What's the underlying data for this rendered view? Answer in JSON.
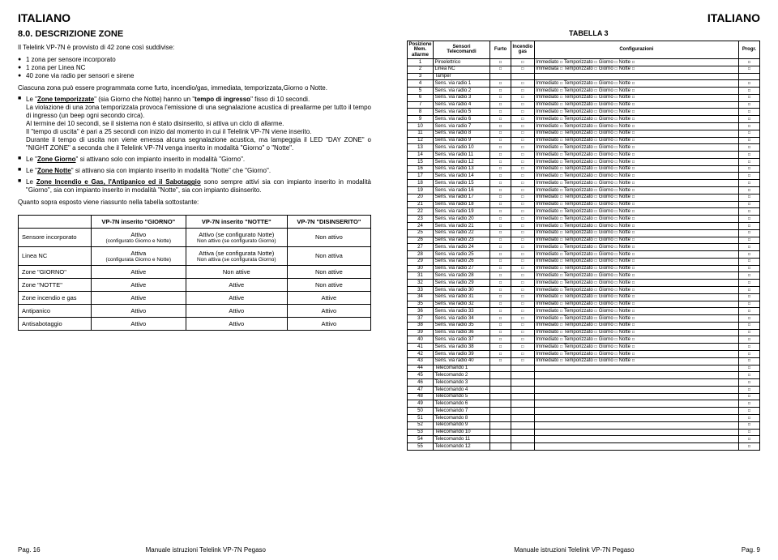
{
  "lang_label": "ITALIANO",
  "left": {
    "section_num": "8.0. DESCRIZIONE ZONE",
    "intro": "Il Telelink VP-7N è provvisto di 42 zone così suddivise:",
    "list1": [
      "1 zona per sensore incorporato",
      "1 zona per Linea NC",
      "40 zone via radio per sensori e sirene"
    ],
    "p1": "Ciascuna zona può essere programmata come furto, incendio/gas, immediata, temporizzata,Giorno o Notte.",
    "sq1_a": "Le \"",
    "sq1_u": "Zone temporizzate",
    "sq1_b": "\" (sia Giorno che Notte) hanno un \"",
    "sq1_c": "tempo di ingresso",
    "sq1_d": "\" fisso di 10 secondi.",
    "p2": "La violazione di una zona temporizzata provoca l'emissione di una segnalazione acustica di preallarme per tutto il tempo di ingresso (un beep ogni secondo circa).",
    "p3": "Al termine dei 10 secondi, se il sistema non è stato disinserito, si attiva un ciclo di allarme.",
    "p4a": "Il \"tempo di uscita\" è pari a 25 secondi con inizio dal momento in cui il Telelink VP-7N viene inserito.",
    "p4b": "Durante il tempo di uscita non viene emessa alcuna segnalazione acustica, ma lampeggia il LED \"DAY ZONE\" o \"NIGHT ZONE\" a seconda che il Telelink VP-7N venga inserito in modalità \"Giorno\" o \"Notte\".",
    "sq2_a": "Le \"",
    "sq2_u": "Zone Giorno",
    "sq2_b": "\" si attivano solo con impianto inserito in modalità \"Giorno\".",
    "sq3_a": "Le \"",
    "sq3_u": "Zone Notte",
    "sq3_b": "\" si attivano sia con impianto inserito in modalità \"Notte\" che \"Giorno\".",
    "sq4_a": "Le ",
    "sq4_u": "Zone Incendio e Gas, l'Antipanico ed il Sabotaggio",
    "sq4_b": " sono sempre attivi sia con impianto inserito in modalità \"Giorno\", sia con impianto inserito in modalità \"Notte\", sia con impianto disinserito.",
    "p5": "Quanto sopra esposto viene riassunto nella tabella sottostante:",
    "tbl1": {
      "h1": "VP-7N inserito \"GIORNO\"",
      "h2": "VP-7N inserito \"NOTTE\"",
      "h3": "VP-7N \"DISINSERITO\"",
      "rows": [
        {
          "h": "Sensore incorporato",
          "c1": "Attivo",
          "c1s": "(configurato Giorno e Notte)",
          "c2": "Attivo (se configurato Notte)",
          "c2s": "Non attivo (se configurato Giorno)",
          "c3": "Non attivo"
        },
        {
          "h": "Linea NC",
          "c1": "Attiva",
          "c1s": "(configurata Giorno e Notte)",
          "c2": "Attiva (se configurata Notte)",
          "c2s": "Non attiva (se configurata Giorno)",
          "c3": "Non attiva"
        },
        {
          "h": "Zone \"GIORNO\"",
          "c1": "Attive",
          "c2": "Non attive",
          "c3": "Non attive"
        },
        {
          "h": "Zone \"NOTTE\"",
          "c1": "Attive",
          "c2": "Attive",
          "c3": "Non attive"
        },
        {
          "h": "Zone incendio e gas",
          "c1": "Attive",
          "c2": "Attive",
          "c3": "Attive"
        },
        {
          "h": "Antipanico",
          "c1": "Attivo",
          "c2": "Attivo",
          "c3": "Attivo"
        },
        {
          "h": "Antisabotaggio",
          "c1": "Attivo",
          "c2": "Attivo",
          "c3": "Attivo"
        }
      ]
    },
    "footer_l": "Pag. 16",
    "footer_m": "Manuale istruzioni Telelink VP-7N Pegaso"
  },
  "right": {
    "tbl3_title": "TABELLA 3",
    "headers": {
      "pos1": "Posizione",
      "pos2": "Mem. allarme",
      "sens": "Sensori",
      "tele": "Telecomandi",
      "furto": "Furto",
      "inc1": "Incendio",
      "inc2": "gas",
      "conf": "Configurazioni",
      "prog": "Progr."
    },
    "cfg_parts": {
      "imm": "Immediato",
      "tmp": "Temporizzato",
      "gio": "Giorno",
      "not": "Notte"
    },
    "rows": [
      {
        "n": "1",
        "s": "Piroelettrico",
        "full": true,
        "imm": "Immediato"
      },
      {
        "n": "2",
        "s": "Linea NC",
        "full": true,
        "imm": "Immediata"
      },
      {
        "n": "3",
        "s": "Tamper",
        "full": false
      },
      {
        "n": "4",
        "s": "Sens. via radio 1",
        "full": true,
        "imm": "Immediato"
      },
      {
        "n": "5",
        "s": "Sens. via radio 2",
        "full": true,
        "imm": "Immediato"
      },
      {
        "n": "6",
        "s": "Sens. via radio 3",
        "full": true,
        "imm": "Immediato"
      },
      {
        "n": "7",
        "s": "Sens. via radio 4",
        "full": true,
        "imm": "Immediato"
      },
      {
        "n": "8",
        "s": "Sens. via radio 5",
        "full": true,
        "imm": "Immediato"
      },
      {
        "n": "9",
        "s": "Sens. via radio 6",
        "full": true,
        "imm": "Immediato"
      },
      {
        "n": "10",
        "s": "Sens. via radio 7",
        "full": true,
        "imm": "Immediato"
      },
      {
        "n": "11",
        "s": "Sens. via radio 8",
        "full": true,
        "imm": "Immediato"
      },
      {
        "n": "12",
        "s": "Sens. via radio 9",
        "full": true,
        "imm": "Immediato"
      },
      {
        "n": "13",
        "s": "Sens. via radio 10",
        "full": true,
        "imm": "Immediato"
      },
      {
        "n": "14",
        "s": "Sens. via radio 11",
        "full": true,
        "imm": "Immediato"
      },
      {
        "n": "15",
        "s": "Sens. via radio 12",
        "full": true,
        "imm": "Immediato"
      },
      {
        "n": "16",
        "s": "Sens. via radio 13",
        "full": true,
        "imm": "Immediato"
      },
      {
        "n": "17",
        "s": "Sens. via radio 14",
        "full": true,
        "imm": "Immediato"
      },
      {
        "n": "18",
        "s": "Sens. via radio 15",
        "full": true,
        "imm": "Immediato"
      },
      {
        "n": "19",
        "s": "Sens. via radio 16",
        "full": true,
        "imm": "Immediato"
      },
      {
        "n": "20",
        "s": "Sens. via radio 17",
        "full": true,
        "imm": "Immediato"
      },
      {
        "n": "21",
        "s": "Sens. via radio 18",
        "full": true,
        "imm": "Immediato"
      },
      {
        "n": "22",
        "s": "Sens. via radio 19",
        "full": true,
        "imm": "Immediato"
      },
      {
        "n": "23",
        "s": "Sens. via radio 20",
        "full": true,
        "imm": "Immediato"
      },
      {
        "n": "24",
        "s": "Sens. via radio 21",
        "full": true,
        "imm": "Immediato"
      },
      {
        "n": "25",
        "s": "Sens. via radio 22",
        "full": true,
        "imm": "Immediato"
      },
      {
        "n": "26",
        "s": "Sens. via radio 23",
        "full": true,
        "imm": "Immediato"
      },
      {
        "n": "27",
        "s": "Sens. via radio 24",
        "full": true,
        "imm": "Immediato"
      },
      {
        "n": "28",
        "s": "Sens. via radio 25",
        "full": true,
        "imm": "Immediato"
      },
      {
        "n": "29",
        "s": "Sens. via radio 26",
        "full": true,
        "imm": "Immediato"
      },
      {
        "n": "30",
        "s": "Sens. via radio 27",
        "full": true,
        "imm": "Immediato"
      },
      {
        "n": "31",
        "s": "Sens. via radio 28",
        "full": true,
        "imm": "Immediato"
      },
      {
        "n": "32",
        "s": "Sens. via radio 29",
        "full": true,
        "imm": "Immediato"
      },
      {
        "n": "33",
        "s": "Sens. via radio 30",
        "full": true,
        "imm": "Immediato"
      },
      {
        "n": "34",
        "s": "Sens. via radio 31",
        "full": true,
        "imm": "Immediato"
      },
      {
        "n": "35",
        "s": "Sens. via radio 32",
        "full": true,
        "imm": "Immediato"
      },
      {
        "n": "36",
        "s": "Sens. via radio 33",
        "full": true,
        "imm": "Immediato"
      },
      {
        "n": "37",
        "s": "Sens. via radio 34",
        "full": true,
        "imm": "Immediato"
      },
      {
        "n": "38",
        "s": "Sens. via radio 35",
        "full": true,
        "imm": "Immediato"
      },
      {
        "n": "39",
        "s": "Sens. via radio 36",
        "full": true,
        "imm": "Immediato"
      },
      {
        "n": "40",
        "s": "Sens. via radio 37",
        "full": true,
        "imm": "Immediato"
      },
      {
        "n": "41",
        "s": "Sens. via radio 38",
        "full": true,
        "imm": "Immediato"
      },
      {
        "n": "42",
        "s": "Sens. via radio 39",
        "full": true,
        "imm": "Immediato"
      },
      {
        "n": "43",
        "s": "Sens. via radio 40",
        "full": true,
        "imm": "Immediato"
      },
      {
        "n": "44",
        "s": "Telecomando 1",
        "prog": true
      },
      {
        "n": "45",
        "s": "Telecomando 2",
        "prog": true
      },
      {
        "n": "46",
        "s": "Telecomando 3",
        "prog": true
      },
      {
        "n": "47",
        "s": "Telecomando 4",
        "prog": true
      },
      {
        "n": "48",
        "s": "Telecomando 5",
        "prog": true
      },
      {
        "n": "49",
        "s": "Telecomando 6",
        "prog": true
      },
      {
        "n": "50",
        "s": "Telecomando 7",
        "prog": true
      },
      {
        "n": "51",
        "s": "Telecomando 8",
        "prog": true
      },
      {
        "n": "52",
        "s": "Telecomando 9",
        "prog": true
      },
      {
        "n": "53",
        "s": "Telecomando 10",
        "prog": true
      },
      {
        "n": "54",
        "s": "Telecomando 11",
        "prog": true
      },
      {
        "n": "55",
        "s": "Telecomando 12",
        "prog": true
      }
    ],
    "footer_m": "Manuale istruzioni Telelink VP-7N Pegaso",
    "footer_r": "Pag. 9"
  }
}
